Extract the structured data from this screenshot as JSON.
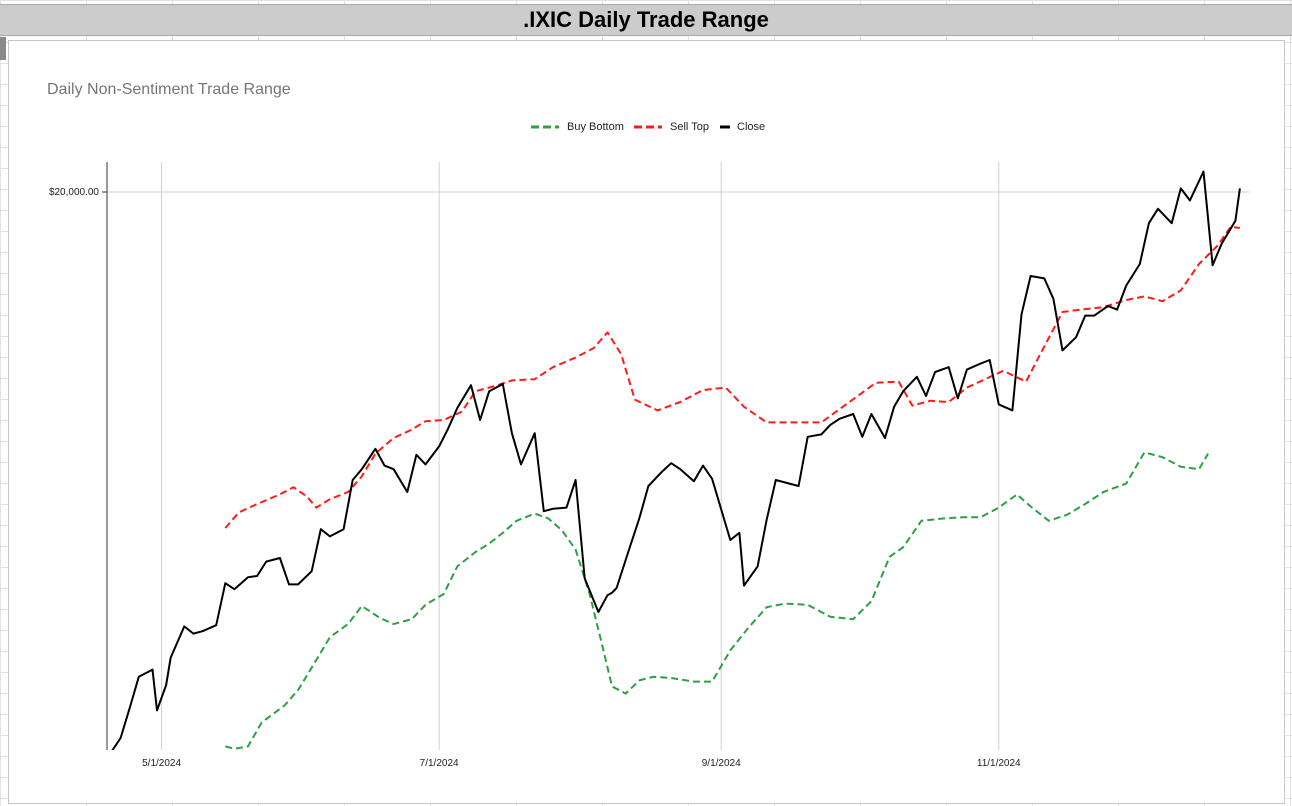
{
  "sheet": {
    "banner_title": ".IXIC Daily Trade Range"
  },
  "colors": {
    "buy_bottom": "#2ea043",
    "sell_top": "#ff1a1a",
    "close": "#000000",
    "grid": "#d0d0d0"
  },
  "chart_data": {
    "type": "line",
    "title": "Daily Non-Sentiment Trade Range",
    "xlabel": "",
    "ylabel": "",
    "y_ticks": [
      {
        "value": 20000,
        "label": "$20,000.00"
      }
    ],
    "x_ticks": [
      {
        "date": "2024-05-01",
        "label": "5/1/2024"
      },
      {
        "date": "2024-07-01",
        "label": "7/1/2024"
      },
      {
        "date": "2024-09-01",
        "label": "9/1/2024"
      },
      {
        "date": "2024-11-01",
        "label": "11/1/2024"
      }
    ],
    "xlim": [
      "2024-04-19",
      "2024-12-26"
    ],
    "ylim": [
      15350,
      20250
    ],
    "grid": true,
    "legend": "top-center",
    "series": [
      {
        "name": "Buy Bottom",
        "style": "dashed",
        "points": [
          [
            "2024-05-15",
            15380
          ],
          [
            "2024-05-17",
            15360
          ],
          [
            "2024-05-20",
            15380
          ],
          [
            "2024-05-23",
            15580
          ],
          [
            "2024-05-28",
            15720
          ],
          [
            "2024-05-31",
            15850
          ],
          [
            "2024-06-04",
            16100
          ],
          [
            "2024-06-07",
            16290
          ],
          [
            "2024-06-11",
            16400
          ],
          [
            "2024-06-14",
            16550
          ],
          [
            "2024-06-18",
            16450
          ],
          [
            "2024-06-21",
            16400
          ],
          [
            "2024-06-25",
            16440
          ],
          [
            "2024-06-28",
            16560
          ],
          [
            "2024-07-02",
            16650
          ],
          [
            "2024-07-05",
            16880
          ],
          [
            "2024-07-09",
            17000
          ],
          [
            "2024-07-12",
            17070
          ],
          [
            "2024-07-15",
            17160
          ],
          [
            "2024-07-18",
            17260
          ],
          [
            "2024-07-22",
            17320
          ],
          [
            "2024-07-25",
            17280
          ],
          [
            "2024-07-28",
            17180
          ],
          [
            "2024-07-31",
            17020
          ],
          [
            "2024-08-03",
            16660
          ],
          [
            "2024-08-06",
            16200
          ],
          [
            "2024-08-08",
            15880
          ],
          [
            "2024-08-11",
            15820
          ],
          [
            "2024-08-14",
            15930
          ],
          [
            "2024-08-17",
            15960
          ],
          [
            "2024-08-21",
            15950
          ],
          [
            "2024-08-26",
            15920
          ],
          [
            "2024-08-30",
            15920
          ],
          [
            "2024-09-03",
            16180
          ],
          [
            "2024-09-07",
            16370
          ],
          [
            "2024-09-11",
            16540
          ],
          [
            "2024-09-15",
            16570
          ],
          [
            "2024-09-20",
            16560
          ],
          [
            "2024-09-25",
            16460
          ],
          [
            "2024-09-30",
            16440
          ],
          [
            "2024-10-04",
            16590
          ],
          [
            "2024-10-08",
            16960
          ],
          [
            "2024-10-11",
            17040
          ],
          [
            "2024-10-15",
            17260
          ],
          [
            "2024-10-20",
            17280
          ],
          [
            "2024-10-24",
            17290
          ],
          [
            "2024-10-28",
            17290
          ],
          [
            "2024-11-01",
            17370
          ],
          [
            "2024-11-05",
            17480
          ],
          [
            "2024-11-08",
            17380
          ],
          [
            "2024-11-12",
            17260
          ],
          [
            "2024-11-16",
            17310
          ],
          [
            "2024-11-20",
            17400
          ],
          [
            "2024-11-24",
            17500
          ],
          [
            "2024-11-29",
            17570
          ],
          [
            "2024-12-03",
            17830
          ],
          [
            "2024-12-07",
            17790
          ],
          [
            "2024-12-11",
            17710
          ],
          [
            "2024-12-15",
            17690
          ],
          [
            "2024-12-17",
            17820
          ]
        ]
      },
      {
        "name": "Sell Top",
        "style": "dashed",
        "points": [
          [
            "2024-05-15",
            17200
          ],
          [
            "2024-05-18",
            17330
          ],
          [
            "2024-05-22",
            17400
          ],
          [
            "2024-05-27",
            17480
          ],
          [
            "2024-05-30",
            17540
          ],
          [
            "2024-06-02",
            17460
          ],
          [
            "2024-06-04",
            17370
          ],
          [
            "2024-06-07",
            17440
          ],
          [
            "2024-06-11",
            17500
          ],
          [
            "2024-06-14",
            17630
          ],
          [
            "2024-06-17",
            17820
          ],
          [
            "2024-06-21",
            17950
          ],
          [
            "2024-06-25",
            18020
          ],
          [
            "2024-06-28",
            18090
          ],
          [
            "2024-07-02",
            18100
          ],
          [
            "2024-07-06",
            18170
          ],
          [
            "2024-07-09",
            18340
          ],
          [
            "2024-07-13",
            18380
          ],
          [
            "2024-07-17",
            18430
          ],
          [
            "2024-07-22",
            18440
          ],
          [
            "2024-07-26",
            18540
          ],
          [
            "2024-07-31",
            18620
          ],
          [
            "2024-08-04",
            18700
          ],
          [
            "2024-08-07",
            18830
          ],
          [
            "2024-08-10",
            18650
          ],
          [
            "2024-08-13",
            18270
          ],
          [
            "2024-08-18",
            18180
          ],
          [
            "2024-08-23",
            18250
          ],
          [
            "2024-08-28",
            18350
          ],
          [
            "2024-09-02",
            18370
          ],
          [
            "2024-09-06",
            18210
          ],
          [
            "2024-09-11",
            18080
          ],
          [
            "2024-09-17",
            18080
          ],
          [
            "2024-09-23",
            18080
          ],
          [
            "2024-09-27",
            18190
          ],
          [
            "2024-10-01",
            18300
          ],
          [
            "2024-10-05",
            18410
          ],
          [
            "2024-10-10",
            18420
          ],
          [
            "2024-10-13",
            18220
          ],
          [
            "2024-10-17",
            18260
          ],
          [
            "2024-10-21",
            18250
          ],
          [
            "2024-10-25",
            18370
          ],
          [
            "2024-10-29",
            18440
          ],
          [
            "2024-11-02",
            18510
          ],
          [
            "2024-11-07",
            18420
          ],
          [
            "2024-11-10",
            18640
          ],
          [
            "2024-11-15",
            19000
          ],
          [
            "2024-11-19",
            19020
          ],
          [
            "2024-11-24",
            19040
          ],
          [
            "2024-11-29",
            19100
          ],
          [
            "2024-12-03",
            19130
          ],
          [
            "2024-12-07",
            19090
          ],
          [
            "2024-12-11",
            19180
          ],
          [
            "2024-12-15",
            19400
          ],
          [
            "2024-12-19",
            19550
          ],
          [
            "2024-12-22",
            19710
          ],
          [
            "2024-12-24",
            19700
          ]
        ]
      },
      {
        "name": "Close",
        "style": "solid",
        "points": [
          [
            "2024-04-19",
            15280
          ],
          [
            "2024-04-22",
            15450
          ],
          [
            "2024-04-24",
            15700
          ],
          [
            "2024-04-26",
            15960
          ],
          [
            "2024-04-29",
            16020
          ],
          [
            "2024-04-30",
            15680
          ],
          [
            "2024-05-02",
            15890
          ],
          [
            "2024-05-03",
            16120
          ],
          [
            "2024-05-06",
            16380
          ],
          [
            "2024-05-08",
            16320
          ],
          [
            "2024-05-10",
            16340
          ],
          [
            "2024-05-13",
            16390
          ],
          [
            "2024-05-15",
            16740
          ],
          [
            "2024-05-17",
            16690
          ],
          [
            "2024-05-20",
            16790
          ],
          [
            "2024-05-22",
            16800
          ],
          [
            "2024-05-24",
            16920
          ],
          [
            "2024-05-27",
            16950
          ],
          [
            "2024-05-29",
            16730
          ],
          [
            "2024-05-31",
            16730
          ],
          [
            "2024-06-03",
            16840
          ],
          [
            "2024-06-05",
            17190
          ],
          [
            "2024-06-07",
            17130
          ],
          [
            "2024-06-10",
            17190
          ],
          [
            "2024-06-12",
            17600
          ],
          [
            "2024-06-14",
            17690
          ],
          [
            "2024-06-17",
            17860
          ],
          [
            "2024-06-19",
            17720
          ],
          [
            "2024-06-21",
            17690
          ],
          [
            "2024-06-24",
            17500
          ],
          [
            "2024-06-26",
            17810
          ],
          [
            "2024-06-28",
            17730
          ],
          [
            "2024-07-01",
            17880
          ],
          [
            "2024-07-03",
            18030
          ],
          [
            "2024-07-05",
            18200
          ],
          [
            "2024-07-08",
            18390
          ],
          [
            "2024-07-10",
            18100
          ],
          [
            "2024-07-12",
            18340
          ],
          [
            "2024-07-15",
            18400
          ],
          [
            "2024-07-17",
            17990
          ],
          [
            "2024-07-19",
            17730
          ],
          [
            "2024-07-22",
            17990
          ],
          [
            "2024-07-24",
            17340
          ],
          [
            "2024-07-26",
            17360
          ],
          [
            "2024-07-29",
            17370
          ],
          [
            "2024-07-31",
            17600
          ],
          [
            "2024-08-02",
            16780
          ],
          [
            "2024-08-05",
            16500
          ],
          [
            "2024-08-07",
            16640
          ],
          [
            "2024-08-08",
            16660
          ],
          [
            "2024-08-09",
            16700
          ],
          [
            "2024-08-12",
            17050
          ],
          [
            "2024-08-14",
            17280
          ],
          [
            "2024-08-16",
            17550
          ],
          [
            "2024-08-19",
            17670
          ],
          [
            "2024-08-21",
            17740
          ],
          [
            "2024-08-23",
            17690
          ],
          [
            "2024-08-26",
            17590
          ],
          [
            "2024-08-28",
            17720
          ],
          [
            "2024-08-30",
            17610
          ],
          [
            "2024-09-03",
            17100
          ],
          [
            "2024-09-05",
            17160
          ],
          [
            "2024-09-06",
            16720
          ],
          [
            "2024-09-09",
            16880
          ],
          [
            "2024-09-11",
            17270
          ],
          [
            "2024-09-13",
            17600
          ],
          [
            "2024-09-16",
            17570
          ],
          [
            "2024-09-18",
            17550
          ],
          [
            "2024-09-20",
            17960
          ],
          [
            "2024-09-23",
            17980
          ],
          [
            "2024-09-25",
            18060
          ],
          [
            "2024-09-27",
            18110
          ],
          [
            "2024-09-30",
            18150
          ],
          [
            "2024-10-02",
            17960
          ],
          [
            "2024-10-04",
            18150
          ],
          [
            "2024-10-07",
            17950
          ],
          [
            "2024-10-09",
            18210
          ],
          [
            "2024-10-11",
            18340
          ],
          [
            "2024-10-14",
            18460
          ],
          [
            "2024-10-16",
            18300
          ],
          [
            "2024-10-18",
            18500
          ],
          [
            "2024-10-21",
            18540
          ],
          [
            "2024-10-23",
            18280
          ],
          [
            "2024-10-25",
            18520
          ],
          [
            "2024-10-28",
            18570
          ],
          [
            "2024-10-30",
            18600
          ],
          [
            "2024-11-01",
            18230
          ],
          [
            "2024-11-04",
            18180
          ],
          [
            "2024-11-06",
            18980
          ],
          [
            "2024-11-08",
            19300
          ],
          [
            "2024-11-11",
            19280
          ],
          [
            "2024-11-13",
            19110
          ],
          [
            "2024-11-15",
            18680
          ],
          [
            "2024-11-18",
            18790
          ],
          [
            "2024-11-20",
            18970
          ],
          [
            "2024-11-22",
            18970
          ],
          [
            "2024-11-25",
            19050
          ],
          [
            "2024-11-27",
            19020
          ],
          [
            "2024-11-29",
            19220
          ],
          [
            "2024-12-02",
            19400
          ],
          [
            "2024-12-04",
            19740
          ],
          [
            "2024-12-06",
            19860
          ],
          [
            "2024-12-09",
            19740
          ],
          [
            "2024-12-11",
            20030
          ],
          [
            "2024-12-13",
            19930
          ],
          [
            "2024-12-16",
            20170
          ],
          [
            "2024-12-18",
            19390
          ],
          [
            "2024-12-20",
            19570
          ],
          [
            "2024-12-23",
            19760
          ],
          [
            "2024-12-24",
            20030
          ]
        ]
      }
    ]
  }
}
